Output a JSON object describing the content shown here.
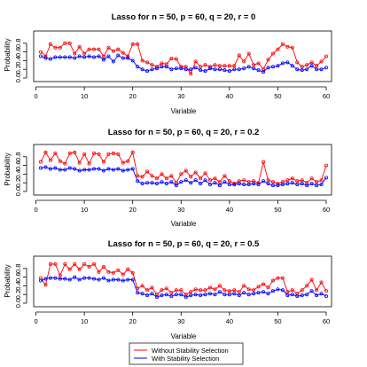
{
  "colors": {
    "without": "#ff0000",
    "with": "#0000ff"
  },
  "legend": {
    "placement": "bottom-center",
    "items": [
      {
        "label": "Without Stability Selection",
        "color": "#ff0000"
      },
      {
        "label": "With Stability Selection",
        "color": "#0000ff"
      }
    ]
  },
  "chart_data": [
    {
      "type": "line",
      "title": "Lasso for n = 50, p = 60, q = 20, r = 0",
      "xlabel": "Variable",
      "ylabel": "Probability",
      "xlim": [
        1,
        60
      ],
      "ylim": [
        0,
        1
      ],
      "xticks": [
        0,
        10,
        20,
        30,
        40,
        50,
        60
      ],
      "yticks": [
        "0.0",
        "0.2",
        "0.4",
        "0.6",
        "0.8"
      ],
      "x": [
        1,
        2,
        3,
        4,
        5,
        6,
        7,
        8,
        9,
        10,
        11,
        12,
        13,
        14,
        15,
        16,
        17,
        18,
        19,
        20,
        21,
        22,
        23,
        24,
        25,
        26,
        27,
        28,
        29,
        30,
        31,
        32,
        33,
        34,
        35,
        36,
        37,
        38,
        39,
        40,
        41,
        42,
        43,
        44,
        45,
        46,
        47,
        48,
        49,
        50,
        51,
        52,
        53,
        54,
        55,
        56,
        57,
        58,
        59,
        60
      ],
      "series": [
        {
          "name": "Without Stability Selection",
          "color": "#ff0000",
          "values": [
            0.6,
            0.5,
            0.78,
            0.7,
            0.7,
            0.8,
            0.8,
            0.56,
            0.72,
            0.56,
            0.66,
            0.66,
            0.66,
            0.5,
            0.7,
            0.62,
            0.66,
            0.58,
            0.5,
            0.78,
            0.78,
            0.4,
            0.36,
            0.3,
            0.26,
            0.34,
            0.32,
            0.45,
            0.44,
            0.26,
            0.26,
            0.1,
            0.38,
            0.26,
            0.3,
            0.26,
            0.3,
            0.28,
            0.28,
            0.28,
            0.28,
            0.52,
            0.38,
            0.56,
            0.3,
            0.34,
            0.2,
            0.42,
            0.56,
            0.66,
            0.78,
            0.72,
            0.7,
            0.36,
            0.26,
            0.3,
            0.36,
            0.28,
            0.38,
            0.5
          ]
        },
        {
          "name": "With Stability Selection",
          "color": "#0000ff",
          "values": [
            0.5,
            0.46,
            0.44,
            0.48,
            0.48,
            0.48,
            0.48,
            0.46,
            0.5,
            0.48,
            0.5,
            0.48,
            0.5,
            0.42,
            0.5,
            0.38,
            0.52,
            0.46,
            0.46,
            0.4,
            0.26,
            0.2,
            0.16,
            0.2,
            0.22,
            0.26,
            0.26,
            0.2,
            0.22,
            0.22,
            0.2,
            0.2,
            0.24,
            0.18,
            0.16,
            0.22,
            0.2,
            0.2,
            0.18,
            0.16,
            0.2,
            0.2,
            0.22,
            0.26,
            0.22,
            0.18,
            0.14,
            0.24,
            0.26,
            0.28,
            0.34,
            0.36,
            0.28,
            0.2,
            0.18,
            0.2,
            0.28,
            0.2,
            0.2,
            0.24
          ]
        }
      ]
    },
    {
      "type": "line",
      "title": "Lasso for n = 50, p = 60, q = 20, r = 0.2",
      "xlabel": "Variable",
      "ylabel": "Probability",
      "xlim": [
        1,
        60
      ],
      "ylim": [
        0,
        1
      ],
      "xticks": [
        0,
        10,
        20,
        30,
        40,
        50,
        60
      ],
      "yticks": [
        "0.0",
        "0.2",
        "0.4",
        "0.6",
        "0.8"
      ],
      "x": [
        1,
        2,
        3,
        4,
        5,
        6,
        7,
        8,
        9,
        10,
        11,
        12,
        13,
        14,
        15,
        16,
        17,
        18,
        19,
        20,
        21,
        22,
        23,
        24,
        25,
        26,
        27,
        28,
        29,
        30,
        31,
        32,
        33,
        34,
        35,
        36,
        37,
        38,
        39,
        40,
        41,
        42,
        43,
        44,
        45,
        46,
        47,
        48,
        49,
        50,
        51,
        52,
        53,
        54,
        55,
        56,
        57,
        58,
        59,
        60
      ],
      "series": [
        {
          "name": "Without Stability Selection",
          "color": "#ff0000",
          "values": [
            0.68,
            0.9,
            0.72,
            0.88,
            0.7,
            0.64,
            0.88,
            0.9,
            0.66,
            0.86,
            0.64,
            0.88,
            0.86,
            0.68,
            0.86,
            0.88,
            0.86,
            0.66,
            0.7,
            0.9,
            0.36,
            0.34,
            0.46,
            0.36,
            0.3,
            0.4,
            0.3,
            0.36,
            0.2,
            0.4,
            0.48,
            0.34,
            0.44,
            0.3,
            0.42,
            0.26,
            0.3,
            0.22,
            0.36,
            0.24,
            0.18,
            0.24,
            0.26,
            0.22,
            0.24,
            0.2,
            0.68,
            0.26,
            0.22,
            0.18,
            0.22,
            0.26,
            0.3,
            0.24,
            0.26,
            0.2,
            0.3,
            0.22,
            0.26,
            0.6
          ]
        },
        {
          "name": "With Stability Selection",
          "color": "#0000ff",
          "values": [
            0.54,
            0.56,
            0.52,
            0.54,
            0.5,
            0.5,
            0.54,
            0.52,
            0.48,
            0.5,
            0.5,
            0.52,
            0.52,
            0.48,
            0.52,
            0.5,
            0.52,
            0.48,
            0.5,
            0.52,
            0.24,
            0.18,
            0.2,
            0.2,
            0.18,
            0.22,
            0.18,
            0.22,
            0.14,
            0.22,
            0.26,
            0.2,
            0.26,
            0.18,
            0.26,
            0.16,
            0.2,
            0.14,
            0.22,
            0.16,
            0.16,
            0.18,
            0.16,
            0.16,
            0.18,
            0.16,
            0.24,
            0.18,
            0.14,
            0.14,
            0.16,
            0.18,
            0.2,
            0.16,
            0.18,
            0.14,
            0.18,
            0.14,
            0.16,
            0.32
          ]
        }
      ]
    },
    {
      "type": "line",
      "title": "Lasso for n = 50, p = 60, q = 20, r = 0.5",
      "xlabel": "Variable",
      "ylabel": "Probability",
      "xlim": [
        1,
        60
      ],
      "ylim": [
        0,
        1
      ],
      "xticks": [
        0,
        10,
        20,
        30,
        40,
        50,
        60
      ],
      "yticks": [
        "0.0",
        "0.2",
        "0.4",
        "0.6",
        "0.8"
      ],
      "x": [
        1,
        2,
        3,
        4,
        5,
        6,
        7,
        8,
        9,
        10,
        11,
        12,
        13,
        14,
        15,
        16,
        17,
        18,
        19,
        20,
        21,
        22,
        23,
        24,
        25,
        26,
        27,
        28,
        29,
        30,
        31,
        32,
        33,
        34,
        35,
        36,
        37,
        38,
        39,
        40,
        41,
        42,
        43,
        44,
        45,
        46,
        47,
        48,
        49,
        50,
        51,
        52,
        53,
        54,
        55,
        56,
        57,
        58,
        59,
        60
      ],
      "series": [
        {
          "name": "Without Stability Selection",
          "color": "#ff0000",
          "values": [
            0.58,
            0.42,
            0.9,
            0.9,
            0.64,
            0.9,
            0.78,
            0.9,
            0.78,
            0.9,
            0.84,
            0.9,
            0.72,
            0.84,
            0.72,
            0.7,
            0.76,
            0.66,
            0.78,
            0.7,
            0.34,
            0.4,
            0.3,
            0.36,
            0.2,
            0.3,
            0.34,
            0.24,
            0.3,
            0.3,
            0.2,
            0.26,
            0.32,
            0.3,
            0.3,
            0.36,
            0.32,
            0.4,
            0.3,
            0.28,
            0.3,
            0.26,
            0.4,
            0.32,
            0.3,
            0.38,
            0.44,
            0.36,
            0.52,
            0.58,
            0.58,
            0.26,
            0.3,
            0.22,
            0.3,
            0.4,
            0.54,
            0.3,
            0.48,
            0.28
          ]
        },
        {
          "name": "With Stability Selection",
          "color": "#0000ff",
          "values": [
            0.52,
            0.56,
            0.58,
            0.58,
            0.56,
            0.56,
            0.54,
            0.6,
            0.54,
            0.58,
            0.58,
            0.56,
            0.54,
            0.58,
            0.52,
            0.54,
            0.54,
            0.52,
            0.54,
            0.54,
            0.24,
            0.22,
            0.18,
            0.22,
            0.14,
            0.18,
            0.2,
            0.16,
            0.2,
            0.2,
            0.14,
            0.18,
            0.2,
            0.18,
            0.2,
            0.22,
            0.2,
            0.26,
            0.2,
            0.2,
            0.22,
            0.18,
            0.24,
            0.2,
            0.22,
            0.24,
            0.26,
            0.22,
            0.28,
            0.32,
            0.3,
            0.18,
            0.2,
            0.16,
            0.18,
            0.2,
            0.28,
            0.18,
            0.22,
            0.16
          ]
        }
      ]
    }
  ]
}
